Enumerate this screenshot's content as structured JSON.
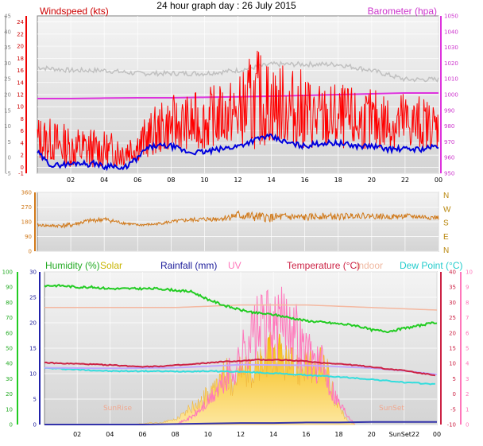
{
  "page": {
    "title": "24 hour graph day : 26 July 2015"
  },
  "colors": {
    "wind": "#ff0000",
    "wind_speed": "#0000dd",
    "gust_avg": "#c0c0c0",
    "baro": "#dd33dd",
    "direction": "#d07818",
    "humidity": "#22cc22",
    "solar": "#f5c842",
    "uv": "#ff77bb",
    "rain": "#3333aa",
    "temperature": "#cc2244",
    "indoor": "#f4b8a0",
    "dewpoint": "#33dddd",
    "indoor_temp": "#c0a8ff"
  },
  "chart_data": [
    {
      "type": "line",
      "labels": {
        "left": "Windspeed (kts)",
        "right": "Barometer (hpa)"
      },
      "left_axis_outer": {
        "ticks": [
          "-5",
          "0",
          "5",
          "10",
          "15",
          "20",
          "25",
          "30",
          "35",
          "40",
          "45"
        ],
        "range": [
          -5,
          45
        ]
      },
      "left_axis_inner": {
        "ticks": [
          "-1",
          "0",
          "2",
          "4",
          "6",
          "8",
          "10",
          "12",
          "14",
          "16",
          "18",
          "20",
          "22",
          "24"
        ],
        "range": [
          -1,
          25
        ]
      },
      "right_axis": {
        "ticks": [
          "950",
          "960",
          "970",
          "980",
          "990",
          "1000",
          "1010",
          "1020",
          "1030",
          "1040",
          "1050"
        ],
        "range": [
          950,
          1050
        ]
      },
      "x_axis": {
        "ticks": [
          "02",
          "04",
          "06",
          "08",
          "10",
          "12",
          "14",
          "16",
          "18",
          "20",
          "22",
          "00"
        ],
        "range_hours": [
          0,
          24
        ]
      },
      "series": [
        {
          "key": "gust",
          "hours": [
            0,
            1,
            2,
            3,
            4,
            5,
            6,
            7,
            8,
            9,
            10,
            11,
            12,
            13,
            14,
            15,
            16,
            17,
            18,
            19,
            20,
            21,
            22,
            23,
            24
          ],
          "min": [
            1,
            1,
            0,
            0,
            0,
            0,
            1,
            2,
            3,
            3,
            3,
            4,
            4,
            3,
            4,
            4,
            3,
            3,
            3,
            3,
            3,
            3,
            3,
            3,
            3
          ],
          "max": [
            9,
            8,
            7,
            7,
            6,
            6,
            7,
            10,
            12,
            12,
            13,
            14,
            15,
            20,
            18,
            17,
            16,
            14,
            14,
            13,
            13,
            13,
            13,
            12,
            11
          ]
        },
        {
          "key": "speed",
          "hours": [
            0,
            0.5,
            1,
            1.5,
            2,
            2.5,
            3,
            3.5,
            4,
            4.5,
            5,
            5.5,
            6,
            6.5,
            7,
            8,
            9,
            10,
            11,
            12,
            13,
            13.5,
            14,
            15,
            16,
            17,
            18,
            19,
            20,
            21,
            22,
            23,
            24
          ],
          "values": [
            2.5,
            1,
            0.2,
            0.5,
            0.5,
            0.8,
            0.5,
            0.7,
            0,
            0.5,
            -0.5,
            0.5,
            1.5,
            3,
            3.5,
            3.5,
            2.5,
            2.5,
            3,
            3.5,
            4.5,
            5,
            5,
            4,
            3.5,
            4,
            4,
            3.5,
            3.5,
            3,
            3,
            3,
            3.5
          ]
        },
        {
          "key": "gray",
          "hours": [
            0,
            2,
            4,
            6,
            8,
            10,
            12,
            14,
            16,
            18,
            20,
            22,
            24
          ],
          "values": [
            16.5,
            16,
            16,
            15.5,
            15.5,
            15.5,
            16,
            17,
            17,
            17,
            16,
            14.5,
            14.5
          ]
        },
        {
          "key": "pressure",
          "hours": [
            0,
            2,
            4,
            6,
            8,
            10,
            12,
            14,
            16,
            18,
            20,
            22,
            24
          ],
          "values": [
            997.5,
            997.5,
            997.8,
            998,
            998,
            998.3,
            998.6,
            999,
            999.5,
            1000,
            1000.5,
            1001,
            1001
          ]
        }
      ]
    },
    {
      "type": "line",
      "y_axis": {
        "ticks": [
          "0",
          "90",
          "180",
          "270",
          "360"
        ],
        "range": [
          0,
          360
        ]
      },
      "compass": [
        "N",
        "W",
        "S",
        "E",
        "N"
      ],
      "series": [
        {
          "key": "direction",
          "hours": [
            0,
            1,
            2,
            3,
            4,
            5,
            6,
            7,
            8,
            9,
            10,
            11,
            12,
            13,
            14,
            15,
            16,
            17,
            18,
            19,
            20,
            21,
            22,
            23,
            24
          ],
          "values": [
            160,
            155,
            160,
            185,
            195,
            175,
            160,
            165,
            180,
            190,
            195,
            200,
            220,
            210,
            205,
            210,
            205,
            215,
            210,
            220,
            215,
            210,
            215,
            210,
            205
          ],
          "spread": [
            15,
            20,
            30,
            25,
            30,
            20,
            15,
            15,
            20,
            25,
            30,
            30,
            60,
            60,
            55,
            50,
            45,
            40,
            40,
            35,
            35,
            30,
            30,
            30,
            30
          ]
        }
      ]
    },
    {
      "type": "line",
      "labels": {
        "humidity": "Humidity (%)",
        "solar": "Solar",
        "rain": "Rainfall (mm)",
        "uv": "UV",
        "temp": "Temperature (°C)",
        "indoor": "Indoor",
        "dew": "Dew Point (°C)"
      },
      "humidity_axis": {
        "ticks": [
          "0",
          "10",
          "20",
          "30",
          "40",
          "50",
          "60",
          "70",
          "80",
          "90",
          "100"
        ],
        "range": [
          0,
          100
        ]
      },
      "rain_axis": {
        "ticks": [
          "0",
          "5",
          "10",
          "15",
          "20",
          "25",
          "30"
        ],
        "range": [
          0,
          30
        ]
      },
      "temp_axis": {
        "ticks": [
          "-10",
          "-5",
          "0",
          "5",
          "10",
          "15",
          "20",
          "25",
          "30",
          "35",
          "40"
        ],
        "range": [
          -10,
          40
        ]
      },
      "uv_axis": {
        "ticks": [
          "0",
          "1",
          "2",
          "3",
          "4",
          "5",
          "6",
          "7",
          "8",
          "9",
          "10"
        ],
        "range": [
          0,
          10
        ]
      },
      "x_axis": {
        "ticks": [
          "02",
          "04",
          "06",
          "08",
          "10",
          "12",
          "14",
          "16",
          "18",
          "20",
          "SunSet22",
          "00"
        ],
        "range_hours": [
          0,
          24
        ]
      },
      "annotations": {
        "sunrise": "SunRise",
        "sunset": "SunSet"
      },
      "series": [
        {
          "key": "humidity",
          "hours": [
            0,
            1,
            2,
            3,
            4,
            5,
            6,
            7,
            8,
            9,
            10,
            11,
            12,
            13,
            14,
            15,
            16,
            17,
            18,
            19,
            20,
            21,
            22,
            23,
            24
          ],
          "values": [
            91,
            91,
            90,
            90,
            89,
            89,
            89,
            89,
            88,
            87,
            82,
            78,
            75,
            73,
            72,
            70,
            68,
            67,
            66,
            65,
            62,
            61,
            63,
            65,
            67
          ]
        },
        {
          "key": "indoor",
          "hours": [
            0,
            4,
            8,
            12,
            16,
            20,
            24
          ],
          "values": [
            23,
            23,
            23,
            23.5,
            23.5,
            23,
            22.5
          ]
        },
        {
          "key": "temperature",
          "hours": [
            0,
            1,
            2,
            3,
            4,
            5,
            6,
            7,
            8,
            9,
            10,
            11,
            12,
            13,
            14,
            15,
            16,
            17,
            18,
            19,
            20,
            21,
            22,
            23,
            24
          ],
          "values": [
            10.3,
            10,
            9.9,
            9.7,
            9.5,
            9.2,
            9,
            9.1,
            9.4,
            9.7,
            10.2,
            10.6,
            10.8,
            11.2,
            11.2,
            11.1,
            10.7,
            10.2,
            9.9,
            9.4,
            8.9,
            8.2,
            7.7,
            6.8,
            6.1
          ]
        },
        {
          "key": "indoor_temp",
          "hours": [
            0,
            4,
            8,
            12,
            16,
            20,
            22,
            24
          ],
          "values": [
            8.6,
            8.4,
            8.6,
            9.6,
            9.4,
            8.5,
            7.6,
            6.4
          ]
        },
        {
          "key": "dewpoint",
          "hours": [
            0,
            2,
            4,
            6,
            8,
            10,
            12,
            14,
            16,
            18,
            20,
            22,
            24
          ],
          "values": [
            8.5,
            8,
            7.5,
            7.5,
            7.4,
            7.5,
            7.3,
            6.8,
            6.2,
            5.6,
            4.8,
            3.8,
            3.2
          ]
        },
        {
          "key": "solar",
          "hours": [
            5,
            6,
            6.5,
            7,
            7.5,
            8,
            8.5,
            9,
            9.5,
            10,
            10.5,
            11,
            11.5,
            12,
            12.5,
            13,
            13.5,
            14,
            14.5,
            15,
            15.5,
            16,
            16.5,
            17,
            17.5,
            18,
            18.5,
            19
          ],
          "values": [
            0,
            0.2,
            0.4,
            0.3,
            0.8,
            1.2,
            2.5,
            4,
            5,
            7,
            8,
            12,
            10,
            13,
            11,
            13.5,
            15,
            17,
            16,
            14,
            13,
            16,
            11,
            15,
            9,
            4,
            1,
            0
          ]
        },
        {
          "key": "uv",
          "hours": [
            8,
            9,
            10,
            11,
            12,
            12.5,
            13,
            13.5,
            14,
            14.5,
            15,
            15.5,
            16,
            17,
            18,
            19
          ],
          "values": [
            0,
            0.5,
            1.5,
            3,
            4.5,
            6,
            6.5,
            7,
            6.5,
            7,
            7.5,
            6,
            5,
            4,
            1.5,
            0
          ]
        },
        {
          "key": "rain",
          "hours": [
            0,
            6,
            8,
            10,
            12,
            14,
            16,
            18,
            20,
            22,
            24
          ],
          "values": [
            0,
            0,
            0.1,
            0.2,
            0.3,
            0.3,
            0.4,
            0.4,
            0.5,
            0.5,
            0.5
          ]
        }
      ]
    }
  ]
}
